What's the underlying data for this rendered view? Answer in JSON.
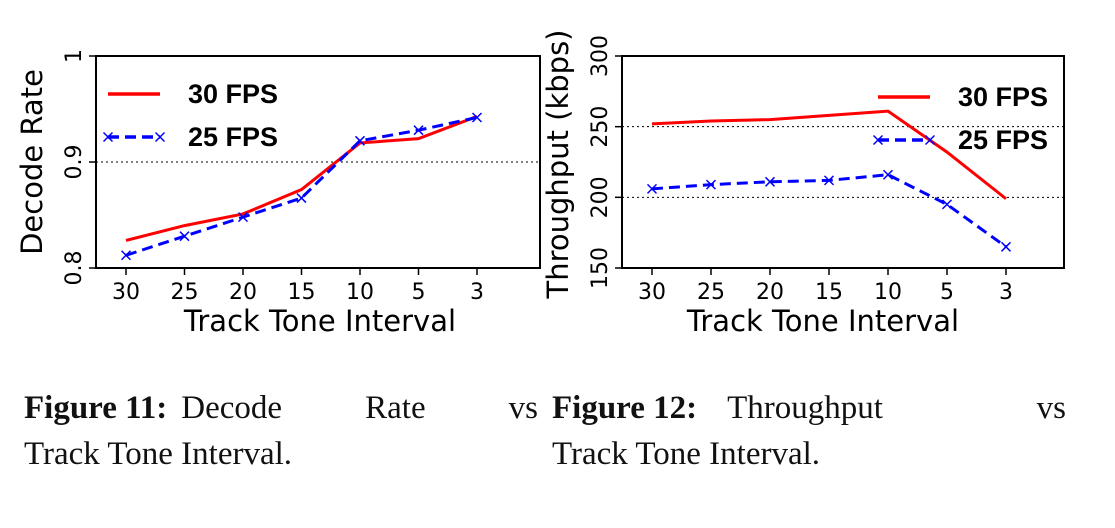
{
  "chart_data": [
    {
      "type": "line",
      "categories": [
        "30",
        "25",
        "20",
        "15",
        "10",
        "5",
        "3"
      ],
      "xlabel": "Track Tone Interval",
      "ylabel": "Decode Rate",
      "ylim": [
        0.8,
        1.0
      ],
      "yticks": [
        "0.8",
        "0.9",
        "1"
      ],
      "reference_lines": [
        0.9
      ],
      "legend_position": "top-left",
      "series": [
        {
          "name": "30 FPS",
          "color": "#ff0000",
          "style": "solid",
          "marker": "none",
          "values": [
            0.826,
            0.84,
            0.851,
            0.874,
            0.918,
            0.922,
            0.943
          ]
        },
        {
          "name": "25 FPS",
          "color": "#0000ff",
          "style": "dashed",
          "marker": "x",
          "values": [
            0.812,
            0.83,
            0.848,
            0.866,
            0.92,
            0.93,
            0.942
          ]
        }
      ]
    },
    {
      "type": "line",
      "categories": [
        "30",
        "25",
        "20",
        "15",
        "10",
        "5",
        "3"
      ],
      "xlabel": "Track Tone Interval",
      "ylabel": "Throughput (kbps)",
      "ylim": [
        150,
        300
      ],
      "yticks": [
        "150",
        "200",
        "250",
        "300"
      ],
      "reference_lines": [
        200,
        250
      ],
      "legend_position": "top-right",
      "series": [
        {
          "name": "30 FPS",
          "color": "#ff0000",
          "style": "solid",
          "marker": "none",
          "values": [
            252,
            254,
            255,
            258,
            261,
            232,
            199
          ]
        },
        {
          "name": "25 FPS",
          "color": "#0000ff",
          "style": "dashed",
          "marker": "x",
          "values": [
            206,
            209,
            211,
            212,
            216,
            195,
            165
          ]
        }
      ]
    }
  ],
  "captions": [
    {
      "label": "Figure 11:",
      "text_line1": "Decode Rate vs",
      "text_line2": "Track Tone Interval."
    },
    {
      "label": "Figure 12:",
      "text_line1": "Throughput vs",
      "text_line2": "Track Tone Interval."
    }
  ]
}
